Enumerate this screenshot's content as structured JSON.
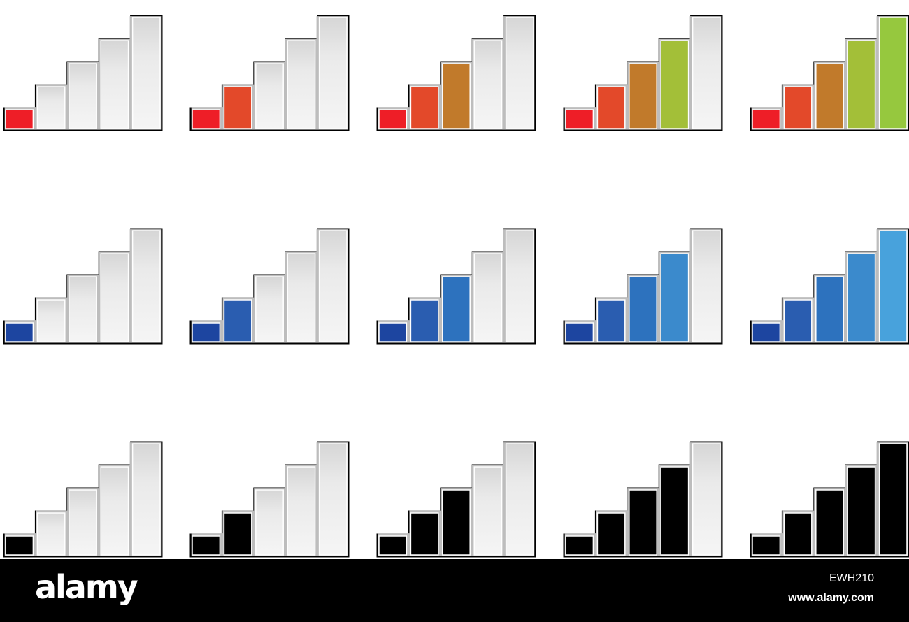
{
  "icon_set": {
    "total_bars": 5,
    "empty_bar_color": "#efefef",
    "frame_color": "#000000",
    "rows": [
      {
        "name": "colored",
        "bar_colors": [
          "#ee1e27",
          "#e3492a",
          "#c17a2b",
          "#a3bf38",
          "#96c83e"
        ],
        "levels": [
          1,
          2,
          3,
          4,
          5
        ]
      },
      {
        "name": "blue",
        "bar_colors": [
          "#1d45a0",
          "#2a5db0",
          "#2d72be",
          "#3b8acc",
          "#48a2dc"
        ],
        "levels": [
          1,
          2,
          3,
          4,
          5
        ]
      },
      {
        "name": "black",
        "bar_colors": [
          "#000000",
          "#000000",
          "#000000",
          "#000000",
          "#000000"
        ],
        "levels": [
          1,
          2,
          3,
          4,
          5
        ]
      }
    ]
  },
  "footer": {
    "brand": "alamy",
    "image_id": "EWH210",
    "url": "www.alamy.com"
  }
}
